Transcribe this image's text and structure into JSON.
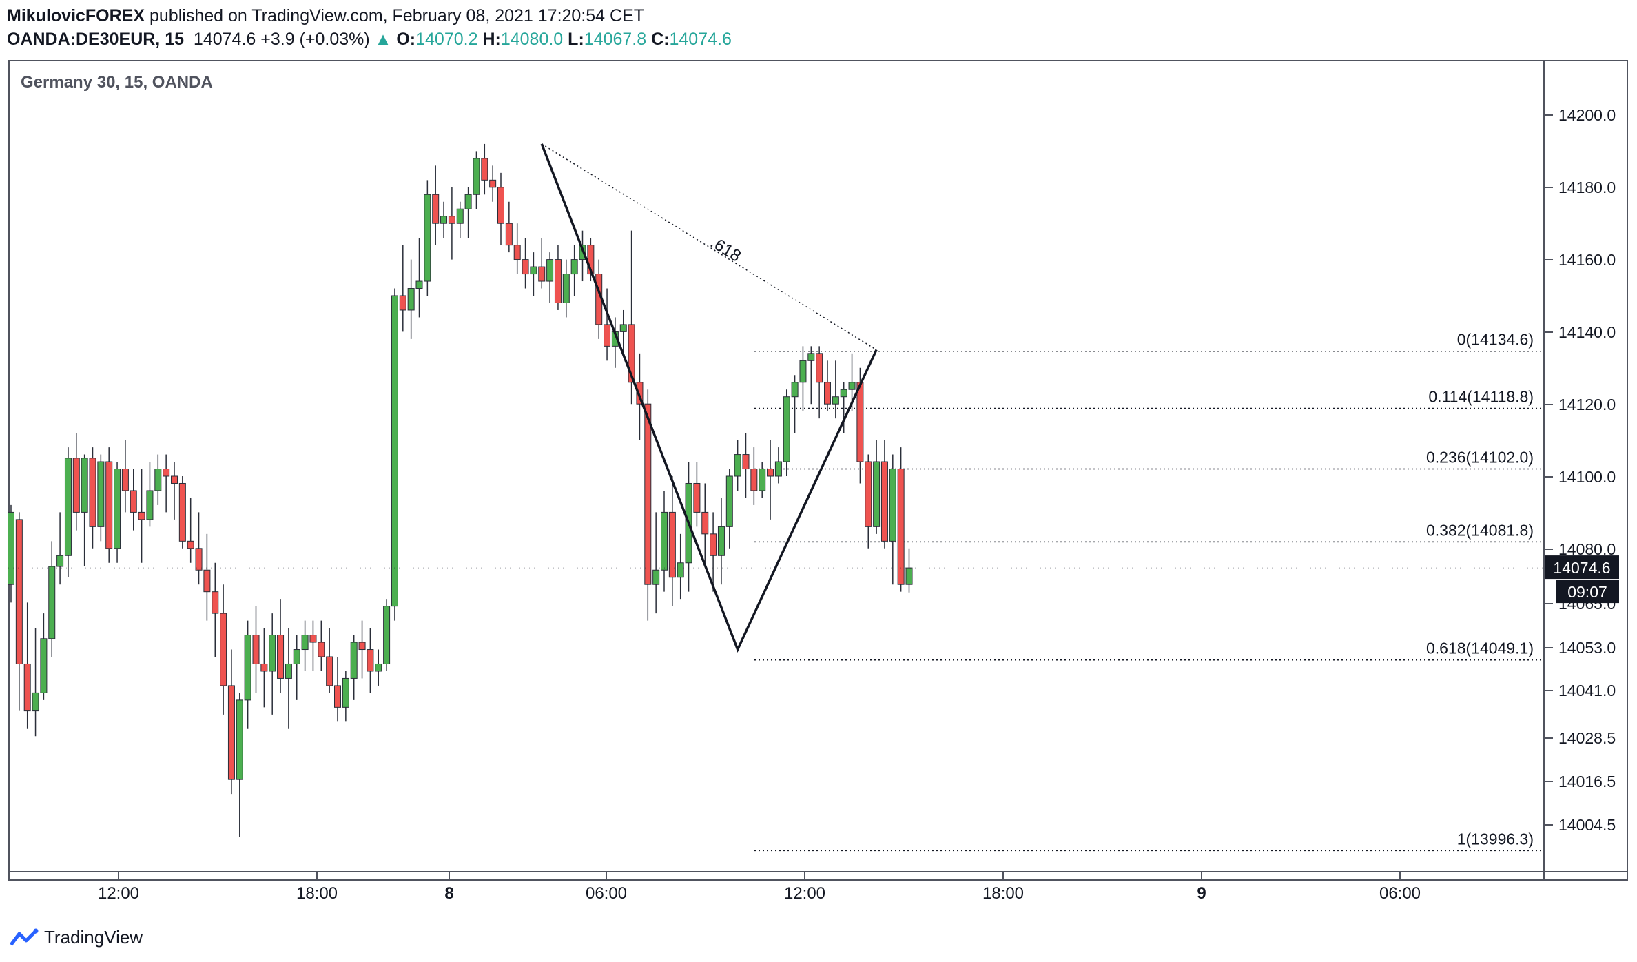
{
  "header": {
    "author": "MikulovicFOREX",
    "published_text": " published on TradingView.com, February 08, 2021 17:20:54 CET",
    "symbol": "OANDA:DE30EUR, 15",
    "last": "14074.6",
    "change": "+3.9 (+0.03%)",
    "o_label": "O:",
    "o_value": "14070.2",
    "h_label": "H:",
    "h_value": "14080.0",
    "l_label": "L:",
    "l_value": "14067.8",
    "c_label": "C:",
    "c_value": "14074.6"
  },
  "chart_title": "Germany 30, 15, OANDA",
  "footer": {
    "brand": "TradingView"
  },
  "colors": {
    "up": "#4caf50",
    "down": "#ef5350",
    "axis": "#50535e",
    "price_tag": "#131722"
  },
  "chart_data": {
    "type": "candlestick",
    "title": "Germany 30, 15, OANDA",
    "timeframe_minutes": 15,
    "x_tick_labels": [
      "12:00",
      "18:00",
      "8",
      "06:00",
      "12:00",
      "18:00",
      "9",
      "06:00"
    ],
    "y_tick_labels": [
      "14200.0",
      "14180.0",
      "14160.0",
      "14140.0",
      "14120.0",
      "14100.0",
      "14080.0",
      "14065.0",
      "14053.0",
      "14041.0",
      "14028.5",
      "14016.5",
      "14004.5"
    ],
    "last_price_label": "14074.6",
    "countdown_label": "09:07",
    "fib_levels": [
      {
        "label": "0(14134.6)",
        "value": 14134.6
      },
      {
        "label": "0.114(14118.8)",
        "value": 14118.8
      },
      {
        "label": "0.236(14102.0)",
        "value": 14102.0
      },
      {
        "label": "0.382(14081.8)",
        "value": 14081.8
      },
      {
        "label": "0.618(14049.1)",
        "value": 14049.1
      },
      {
        "label": "1(13996.3)",
        "value": 13996.3
      }
    ],
    "ratio_annotation": ".618",
    "pattern_points": [
      {
        "bar": 65,
        "price": 14192
      },
      {
        "bar": 89,
        "price": 14052
      },
      {
        "bar": 106,
        "price": 14135
      }
    ],
    "candles": [
      [
        14070,
        14092,
        14065,
        14090
      ],
      [
        14088,
        14090,
        14035,
        14048
      ],
      [
        14048,
        14065,
        14030,
        14035
      ],
      [
        14035,
        14058,
        14028,
        14040
      ],
      [
        14040,
        14062,
        14038,
        14055
      ],
      [
        14055,
        14082,
        14050,
        14075
      ],
      [
        14075,
        14090,
        14070,
        14078
      ],
      [
        14078,
        14108,
        14072,
        14105
      ],
      [
        14105,
        14112,
        14085,
        14090
      ],
      [
        14090,
        14106,
        14075,
        14105
      ],
      [
        14105,
        14108,
        14080,
        14086
      ],
      [
        14086,
        14106,
        14082,
        14104
      ],
      [
        14104,
        14108,
        14076,
        14080
      ],
      [
        14080,
        14104,
        14076,
        14102
      ],
      [
        14102,
        14110,
        14090,
        14096
      ],
      [
        14096,
        14102,
        14085,
        14090
      ],
      [
        14090,
        14102,
        14076,
        14088
      ],
      [
        14088,
        14104,
        14086,
        14096
      ],
      [
        14096,
        14106,
        14092,
        14102
      ],
      [
        14102,
        14106,
        14090,
        14100
      ],
      [
        14100,
        14104,
        14088,
        14098
      ],
      [
        14098,
        14100,
        14080,
        14082
      ],
      [
        14082,
        14094,
        14076,
        14080
      ],
      [
        14080,
        14090,
        14070,
        14074
      ],
      [
        14074,
        14084,
        14060,
        14068
      ],
      [
        14068,
        14076,
        14050,
        14062
      ],
      [
        14062,
        14070,
        14034,
        14042
      ],
      [
        14042,
        14052,
        14012,
        14016
      ],
      [
        14016,
        14040,
        14000,
        14038
      ],
      [
        14038,
        14060,
        14030,
        14056
      ],
      [
        14056,
        14064,
        14040,
        14048
      ],
      [
        14048,
        14058,
        14036,
        14046
      ],
      [
        14046,
        14062,
        14034,
        14056
      ],
      [
        14056,
        14066,
        14040,
        14044
      ],
      [
        14044,
        14058,
        14030,
        14048
      ],
      [
        14048,
        14056,
        14038,
        14052
      ],
      [
        14052,
        14060,
        14046,
        14056
      ],
      [
        14056,
        14060,
        14046,
        14054
      ],
      [
        14054,
        14060,
        14046,
        14050
      ],
      [
        14050,
        14058,
        14040,
        14042
      ],
      [
        14042,
        14050,
        14032,
        14036
      ],
      [
        14036,
        14046,
        14032,
        14044
      ],
      [
        14044,
        14056,
        14038,
        14054
      ],
      [
        14054,
        14060,
        14044,
        14052
      ],
      [
        14052,
        14058,
        14040,
        14046
      ],
      [
        14046,
        14052,
        14042,
        14048
      ],
      [
        14048,
        14066,
        14046,
        14064
      ],
      [
        14064,
        14152,
        14060,
        14150
      ],
      [
        14150,
        14164,
        14140,
        14146
      ],
      [
        14146,
        14160,
        14138,
        14152
      ],
      [
        14152,
        14166,
        14144,
        14154
      ],
      [
        14154,
        14182,
        14150,
        14178
      ],
      [
        14178,
        14186,
        14164,
        14170
      ],
      [
        14170,
        14176,
        14166,
        14172
      ],
      [
        14172,
        14180,
        14160,
        14170
      ],
      [
        14170,
        14176,
        14166,
        14174
      ],
      [
        14174,
        14180,
        14166,
        14178
      ],
      [
        14178,
        14190,
        14174,
        14188
      ],
      [
        14188,
        14192,
        14178,
        14182
      ],
      [
        14182,
        14186,
        14176,
        14180
      ],
      [
        14180,
        14184,
        14164,
        14170
      ],
      [
        14170,
        14176,
        14162,
        14164
      ],
      [
        14164,
        14170,
        14156,
        14160
      ],
      [
        14160,
        14166,
        14152,
        14156
      ],
      [
        14156,
        14162,
        14150,
        14158
      ],
      [
        14158,
        14166,
        14152,
        14154
      ],
      [
        14154,
        14162,
        14148,
        14160
      ],
      [
        14160,
        14164,
        14146,
        14148
      ],
      [
        14148,
        14160,
        14144,
        14156
      ],
      [
        14156,
        14164,
        14150,
        14160
      ],
      [
        14160,
        14168,
        14154,
        14164
      ],
      [
        14164,
        14166,
        14154,
        14156
      ],
      [
        14156,
        14160,
        14138,
        14142
      ],
      [
        14142,
        14152,
        14132,
        14136
      ],
      [
        14136,
        14144,
        14130,
        14140
      ],
      [
        14140,
        14146,
        14134,
        14142
      ],
      [
        14142,
        14168,
        14120,
        14126
      ],
      [
        14126,
        14134,
        14110,
        14120
      ],
      [
        14120,
        14124,
        14060,
        14070
      ],
      [
        14070,
        14090,
        14062,
        14074
      ],
      [
        14074,
        14096,
        14068,
        14090
      ],
      [
        14090,
        14100,
        14064,
        14072
      ],
      [
        14072,
        14084,
        14066,
        14076
      ],
      [
        14076,
        14104,
        14068,
        14098
      ],
      [
        14098,
        14104,
        14086,
        14090
      ],
      [
        14090,
        14098,
        14076,
        14084
      ],
      [
        14084,
        14090,
        14068,
        14078
      ],
      [
        14078,
        14094,
        14070,
        14086
      ],
      [
        14086,
        14102,
        14080,
        14100
      ],
      [
        14100,
        14110,
        14096,
        14106
      ],
      [
        14106,
        14112,
        14094,
        14102
      ],
      [
        14102,
        14108,
        14092,
        14096
      ],
      [
        14096,
        14104,
        14094,
        14102
      ],
      [
        14102,
        14110,
        14088,
        14100
      ],
      [
        14100,
        14108,
        14098,
        14104
      ],
      [
        14104,
        14124,
        14100,
        14122
      ],
      [
        14122,
        14128,
        14112,
        14126
      ],
      [
        14126,
        14136,
        14118,
        14132
      ],
      [
        14132,
        14136,
        14120,
        14134
      ],
      [
        14134,
        14136,
        14116,
        14126
      ],
      [
        14126,
        14132,
        14118,
        14120
      ],
      [
        14120,
        14132,
        14116,
        14122
      ],
      [
        14122,
        14126,
        14112,
        14124
      ],
      [
        14124,
        14134,
        14118,
        14126
      ],
      [
        14126,
        14130,
        14098,
        14104
      ],
      [
        14104,
        14106,
        14080,
        14086
      ],
      [
        14086,
        14110,
        14084,
        14104
      ],
      [
        14104,
        14110,
        14080,
        14082
      ],
      [
        14082,
        14106,
        14070,
        14102
      ],
      [
        14102,
        14108,
        14068,
        14070
      ],
      [
        14070,
        14080,
        14067.8,
        14074.6
      ]
    ]
  }
}
